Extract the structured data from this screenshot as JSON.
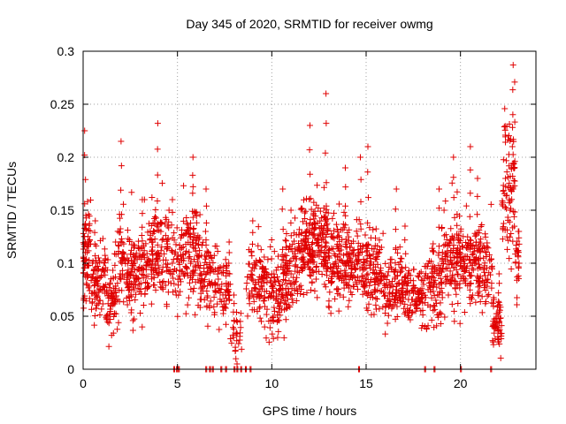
{
  "chart_data": {
    "type": "scatter",
    "title": "Day 345 of 2020, SRMTID for receiver owmg",
    "xlabel": "GPS time / hours",
    "ylabel": "SRMTID / TECUs",
    "xlim": [
      0,
      24
    ],
    "ylim": [
      0,
      0.3
    ],
    "xticks": [
      0,
      5,
      10,
      15,
      20
    ],
    "xtick_labels": [
      "0",
      "5",
      "10",
      "15",
      "20"
    ],
    "yticks": [
      0,
      0.05,
      0.1,
      0.15,
      0.2,
      0.25,
      0.3
    ],
    "ytick_labels": [
      "0",
      "0.05",
      "0.1",
      "0.15",
      "0.2",
      "0.25",
      "0.3"
    ],
    "grid": true,
    "marker": "+",
    "marker_color": "#e00000",
    "series": [
      {
        "name": "SRMTID",
        "generator": "sampled cloud of + markers (approximate reconstruction of the depicted point cloud)",
        "segments": [
          {
            "x": [
              0.0,
              0.4
            ],
            "center": 0.11,
            "spread": 0.04,
            "n": 70,
            "peak": 0.225
          },
          {
            "x": [
              0.4,
              1.2
            ],
            "center": 0.085,
            "spread": 0.03,
            "n": 80,
            "peak": 0.14
          },
          {
            "x": [
              1.2,
              1.8
            ],
            "center": 0.065,
            "spread": 0.03,
            "n": 60,
            "peak": 0.12
          },
          {
            "x": [
              1.8,
              2.6
            ],
            "center": 0.1,
            "spread": 0.04,
            "n": 90,
            "peak": 0.215
          },
          {
            "x": [
              2.6,
              3.6
            ],
            "center": 0.095,
            "spread": 0.035,
            "n": 100,
            "peak": 0.16
          },
          {
            "x": [
              3.6,
              4.6
            ],
            "center": 0.11,
            "spread": 0.04,
            "n": 110,
            "peak": 0.232
          },
          {
            "x": [
              4.6,
              5.2
            ],
            "center": 0.1,
            "spread": 0.035,
            "n": 40,
            "peak": 0.16
          },
          {
            "x": [
              5.2,
              6.2
            ],
            "center": 0.115,
            "spread": 0.04,
            "n": 110,
            "peak": 0.2
          },
          {
            "x": [
              6.2,
              7.2
            ],
            "center": 0.09,
            "spread": 0.035,
            "n": 90,
            "peak": 0.17
          },
          {
            "x": [
              7.2,
              7.8
            ],
            "center": 0.07,
            "spread": 0.03,
            "n": 45,
            "peak": 0.12
          },
          {
            "x": [
              7.8,
              8.4
            ],
            "center": 0.03,
            "spread": 0.02,
            "n": 25,
            "peak": 0.07
          },
          {
            "x": [
              8.6,
              9.6
            ],
            "center": 0.085,
            "spread": 0.03,
            "n": 80,
            "peak": 0.14
          },
          {
            "x": [
              9.6,
              10.6
            ],
            "center": 0.075,
            "spread": 0.035,
            "n": 100,
            "peak": 0.17
          },
          {
            "x": [
              10.6,
              11.4
            ],
            "center": 0.09,
            "spread": 0.035,
            "n": 90,
            "peak": 0.15
          },
          {
            "x": [
              11.4,
              12.2
            ],
            "center": 0.115,
            "spread": 0.04,
            "n": 110,
            "peak": 0.23
          },
          {
            "x": [
              12.2,
              13.0
            ],
            "center": 0.12,
            "spread": 0.04,
            "n": 110,
            "peak": 0.26
          },
          {
            "x": [
              13.0,
              14.0
            ],
            "center": 0.1,
            "spread": 0.04,
            "n": 110,
            "peak": 0.19
          },
          {
            "x": [
              14.0,
              15.0
            ],
            "center": 0.095,
            "spread": 0.035,
            "n": 100,
            "peak": 0.2
          },
          {
            "x": [
              15.0,
              16.0
            ],
            "center": 0.09,
            "spread": 0.035,
            "n": 100,
            "peak": 0.21
          },
          {
            "x": [
              16.0,
              17.0
            ],
            "center": 0.075,
            "spread": 0.035,
            "n": 100,
            "peak": 0.17
          },
          {
            "x": [
              17.0,
              18.0
            ],
            "center": 0.07,
            "spread": 0.03,
            "n": 90,
            "peak": 0.135
          },
          {
            "x": [
              18.0,
              19.0
            ],
            "center": 0.08,
            "spread": 0.035,
            "n": 90,
            "peak": 0.17
          },
          {
            "x": [
              19.0,
              19.9
            ],
            "center": 0.105,
            "spread": 0.04,
            "n": 100,
            "peak": 0.2
          },
          {
            "x": [
              19.9,
              20.8
            ],
            "center": 0.1,
            "spread": 0.04,
            "n": 90,
            "peak": 0.21
          },
          {
            "x": [
              20.8,
              21.7
            ],
            "center": 0.095,
            "spread": 0.035,
            "n": 90,
            "peak": 0.18
          },
          {
            "x": [
              21.7,
              22.2
            ],
            "center": 0.045,
            "spread": 0.025,
            "n": 55,
            "peak": 0.09
          },
          {
            "x": [
              22.2,
              22.9
            ],
            "center": 0.17,
            "spread": 0.06,
            "n": 90,
            "peak": 0.287
          },
          {
            "x": [
              22.9,
              23.1
            ],
            "center": 0.1,
            "spread": 0.03,
            "n": 20,
            "peak": 0.13
          }
        ],
        "zero_points": [
          4.8,
          4.95,
          5.05,
          6.5,
          6.7,
          6.85,
          7.3,
          7.55,
          8.0,
          8.15,
          8.35,
          8.6,
          8.85,
          14.6,
          18.1,
          18.6,
          20.0,
          21.6
        ]
      }
    ]
  }
}
